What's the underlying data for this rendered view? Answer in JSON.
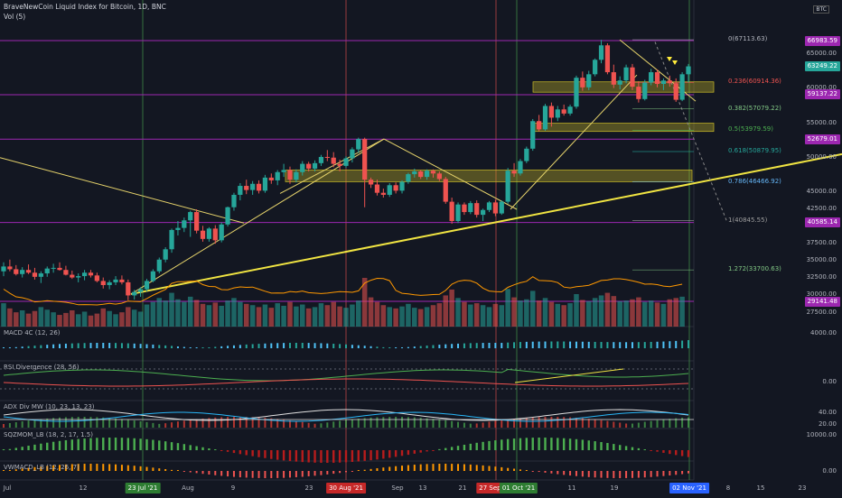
{
  "header": {
    "title": "BraveNewCoin Liquid Index for Bitcoin, 1D, BNC",
    "volume_label": "Vol (5)",
    "currency_badge": "BTC"
  },
  "price_axis": {
    "ticks": [
      "65000.00",
      "60000.00",
      "55000.00",
      "50000.00",
      "45000.00",
      "42500.00",
      "37500.00",
      "35000.00",
      "32500.00",
      "30000.00",
      "27500.00"
    ],
    "tags": [
      {
        "text": "66983.59",
        "color": "#9c27b0",
        "value": 66983.59
      },
      {
        "text": "63249.22",
        "color": "#26a69a",
        "value": 63249.22
      },
      {
        "text": "59137.22",
        "color": "#9c27b0",
        "value": 59137.22
      },
      {
        "text": "52679.01",
        "color": "#9c27b0",
        "value": 52679.01
      },
      {
        "text": "40585.14",
        "color": "#9c27b0",
        "value": 40585.14
      },
      {
        "text": "29141.48",
        "color": "#9c27b0",
        "value": 29141.48
      }
    ]
  },
  "fib_levels": [
    {
      "text": "0(67113.63)",
      "color": "#b2b5be"
    },
    {
      "text": "0.236(60914.36)",
      "color": "#ef5350"
    },
    {
      "text": "0.382(57079.22)",
      "color": "#81c784"
    },
    {
      "text": "0.5(53979.59)",
      "color": "#4caf50"
    },
    {
      "text": "0.618(50879.95)",
      "color": "#26a69a"
    },
    {
      "text": "0.786(46466.92)",
      "color": "#64b5f6"
    },
    {
      "text": "1(40845.55)",
      "color": "#9e9e9e"
    },
    {
      "text": "1.272(33700.63)",
      "color": "#81c784"
    }
  ],
  "panes": {
    "macd": {
      "title": "MACD 4C (12, 26)",
      "axis": "4000.00"
    },
    "rsi": {
      "title": "RSI Divergence (28, 56)",
      "axis": "0.00"
    },
    "adx": {
      "title": "ADX Div MW (10, 23, 13, 23)",
      "axis": "40.00",
      "axis2": "20.00"
    },
    "sqz": {
      "title": "SQZMOM_LB (18, 2, 17, 1.5)",
      "axis": "10000.00"
    },
    "vwmacd": {
      "title": "VWMACD_LB (12, 26, 7)",
      "axis": "0.00"
    }
  },
  "time_axis": {
    "labels": [
      "Jul",
      "12",
      "Aug",
      "9",
      "23",
      "Sep",
      "13",
      "21",
      "11",
      "19",
      "8",
      "15",
      "23"
    ],
    "badges": [
      {
        "text": "23 Jul '21",
        "color": "#2e7d32"
      },
      {
        "text": "30 Aug '21",
        "color": "#c62828"
      },
      {
        "text": "27 Sep '21",
        "color": "#c62828"
      },
      {
        "text": "01 Oct '21",
        "color": "#2e7d32"
      },
      {
        "text": "02 Nov '21",
        "color": "#2962ff"
      }
    ]
  },
  "chart_data": {
    "type": "candlestick",
    "ylim": [
      26000,
      70000
    ],
    "candles": [
      [
        33500,
        34800,
        32800,
        34200
      ],
      [
        34200,
        35200,
        33500,
        33800
      ],
      [
        33800,
        34400,
        32900,
        33100
      ],
      [
        33100,
        34100,
        32600,
        33700
      ],
      [
        33700,
        34500,
        33100,
        33300
      ],
      [
        33300,
        34000,
        32300,
        32700
      ],
      [
        32700,
        33500,
        31800,
        33200
      ],
      [
        33200,
        34200,
        32700,
        33900
      ],
      [
        33900,
        34600,
        33300,
        34000
      ],
      [
        34000,
        34800,
        33600,
        33700
      ],
      [
        33700,
        34300,
        32900,
        33000
      ],
      [
        33000,
        33600,
        32400,
        32600
      ],
      [
        32600,
        33200,
        31900,
        32800
      ],
      [
        32800,
        33700,
        32200,
        33300
      ],
      [
        33300,
        33700,
        32600,
        32900
      ],
      [
        32900,
        33300,
        31900,
        32100
      ],
      [
        32100,
        32600,
        31000,
        31500
      ],
      [
        31500,
        32200,
        30900,
        31900
      ],
      [
        31900,
        32800,
        31500,
        32300
      ],
      [
        32300,
        32900,
        31600,
        31900
      ],
      [
        31900,
        32300,
        29300,
        30000
      ],
      [
        30000,
        30800,
        29400,
        30500
      ],
      [
        30500,
        31200,
        29800,
        30900
      ],
      [
        30900,
        32400,
        30600,
        32100
      ],
      [
        32100,
        33800,
        31900,
        33500
      ],
      [
        33500,
        35500,
        33200,
        35200
      ],
      [
        35200,
        37000,
        34800,
        36700
      ],
      [
        36700,
        39700,
        36200,
        39500
      ],
      [
        39500,
        40800,
        38700,
        39800
      ],
      [
        39800,
        41300,
        39200,
        40900
      ],
      [
        40900,
        42300,
        38500,
        42100
      ],
      [
        42100,
        42500,
        39000,
        39400
      ],
      [
        39400,
        40100,
        37800,
        38200
      ],
      [
        38200,
        39900,
        37800,
        39700
      ],
      [
        39700,
        40200,
        37500,
        38000
      ],
      [
        38000,
        40600,
        37700,
        40300
      ],
      [
        40300,
        42900,
        40000,
        42800
      ],
      [
        42800,
        44900,
        42300,
        44600
      ],
      [
        44600,
        46300,
        43800,
        45900
      ],
      [
        45900,
        46800,
        44700,
        45300
      ],
      [
        45300,
        46600,
        44600,
        46200
      ],
      [
        46200,
        46700,
        44800,
        45200
      ],
      [
        45200,
        47500,
        44900,
        47100
      ],
      [
        47100,
        47700,
        46200,
        46700
      ],
      [
        46700,
        48200,
        46000,
        47900
      ],
      [
        47900,
        49100,
        47200,
        48200
      ],
      [
        48200,
        48700,
        46200,
        46800
      ],
      [
        46800,
        48300,
        46400,
        47900
      ],
      [
        47900,
        49500,
        47400,
        49100
      ],
      [
        49100,
        49400,
        48000,
        48400
      ],
      [
        48400,
        49600,
        48000,
        49200
      ],
      [
        49200,
        50400,
        48800,
        50100
      ],
      [
        50100,
        51100,
        49500,
        50000
      ],
      [
        50000,
        50800,
        48600,
        49100
      ],
      [
        49100,
        49700,
        48000,
        48800
      ],
      [
        48800,
        50200,
        48500,
        49900
      ],
      [
        49900,
        51500,
        49300,
        51200
      ],
      [
        51200,
        52900,
        50700,
        52700
      ],
      [
        52700,
        52900,
        42800,
        46800
      ],
      [
        46800,
        47100,
        45600,
        46100
      ],
      [
        46100,
        46800,
        44500,
        44900
      ],
      [
        44900,
        45500,
        44200,
        44600
      ],
      [
        44600,
        46300,
        44300,
        46000
      ],
      [
        46000,
        46400,
        44800,
        45200
      ],
      [
        45200,
        46700,
        44800,
        46500
      ],
      [
        46500,
        47800,
        46200,
        47600
      ],
      [
        47600,
        48400,
        47100,
        48000
      ],
      [
        48000,
        48200,
        46900,
        47200
      ],
      [
        47200,
        48300,
        46800,
        48100
      ],
      [
        48100,
        48300,
        47100,
        47700
      ],
      [
        47700,
        48000,
        46600,
        46900
      ],
      [
        46900,
        47200,
        43300,
        43600
      ],
      [
        43600,
        44200,
        40400,
        40800
      ],
      [
        40800,
        43500,
        40500,
        43200
      ],
      [
        43200,
        43500,
        41700,
        42100
      ],
      [
        42100,
        43700,
        41800,
        43400
      ],
      [
        43400,
        43800,
        41300,
        41700
      ],
      [
        41700,
        42600,
        40800,
        42400
      ],
      [
        42400,
        43700,
        42100,
        43500
      ],
      [
        43500,
        43900,
        41500,
        41900
      ],
      [
        41900,
        43800,
        41700,
        43600
      ],
      [
        43600,
        48500,
        43300,
        48100
      ],
      [
        48100,
        49200,
        47200,
        47700
      ],
      [
        47700,
        49800,
        47400,
        49500
      ],
      [
        49500,
        51600,
        49200,
        51300
      ],
      [
        51300,
        55600,
        51000,
        55300
      ],
      [
        55300,
        56200,
        53800,
        54100
      ],
      [
        54100,
        57800,
        53900,
        57500
      ],
      [
        57500,
        58000,
        54500,
        55800
      ],
      [
        55800,
        57500,
        55300,
        57000
      ],
      [
        57000,
        57700,
        56100,
        56400
      ],
      [
        56400,
        57700,
        56100,
        57400
      ],
      [
        57400,
        61900,
        57100,
        61600
      ],
      [
        61600,
        62500,
        59700,
        60200
      ],
      [
        60200,
        62600,
        59800,
        62100
      ],
      [
        62100,
        64400,
        61800,
        64200
      ],
      [
        64200,
        67100,
        63700,
        66300
      ],
      [
        66300,
        66600,
        62100,
        62400
      ],
      [
        62400,
        63500,
        60100,
        60600
      ],
      [
        60600,
        61800,
        59900,
        61200
      ],
      [
        61200,
        63500,
        60800,
        63100
      ],
      [
        63100,
        63600,
        59800,
        60300
      ],
      [
        60300,
        61100,
        58000,
        58500
      ],
      [
        58500,
        61300,
        58300,
        60900
      ],
      [
        60900,
        62900,
        60500,
        62400
      ],
      [
        62400,
        62800,
        60200,
        60700
      ],
      [
        60700,
        61500,
        59800,
        61200
      ],
      [
        61200,
        61900,
        60300,
        60800
      ],
      [
        60800,
        61500,
        58100,
        58400
      ],
      [
        58400,
        62400,
        58200,
        62100
      ],
      [
        62100,
        63600,
        60900,
        63249
      ]
    ],
    "volume_scale": [
      0,
      100
    ],
    "volumes": [
      36,
      28,
      22,
      25,
      20,
      24,
      30,
      26,
      22,
      18,
      21,
      25,
      19,
      23,
      17,
      20,
      28,
      24,
      19,
      22,
      30,
      26,
      23,
      34,
      38,
      44,
      40,
      52,
      42,
      38,
      46,
      41,
      35,
      33,
      37,
      32,
      40,
      44,
      38,
      35,
      33,
      30,
      34,
      29,
      36,
      32,
      38,
      31,
      34,
      28,
      30,
      36,
      33,
      38,
      31,
      29,
      34,
      40,
      75,
      45,
      38,
      33,
      30,
      28,
      31,
      35,
      29,
      27,
      30,
      33,
      36,
      48,
      57,
      44,
      38,
      34,
      36,
      33,
      30,
      35,
      33,
      58,
      45,
      40,
      42,
      55,
      40,
      44,
      38,
      35,
      33,
      36,
      50,
      41,
      39,
      44,
      48,
      52,
      47,
      39,
      40,
      42,
      45,
      38,
      40,
      37,
      35,
      42,
      44,
      46
    ]
  }
}
